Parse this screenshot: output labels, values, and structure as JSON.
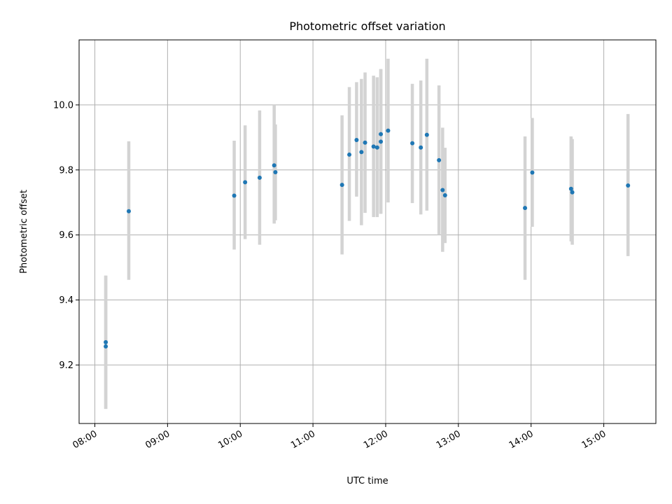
{
  "chart_data": {
    "type": "scatter",
    "title": "Photometric offset variation",
    "xlabel": "UTC time",
    "ylabel": "Photometric offset",
    "xlim": [
      "07:47",
      "15:43"
    ],
    "ylim": [
      9.02,
      10.2
    ],
    "grid": true,
    "x_ticks": [
      "08:00",
      "09:00",
      "10:00",
      "11:00",
      "12:00",
      "13:00",
      "14:00",
      "15:00"
    ],
    "y_ticks": [
      9.2,
      9.4,
      9.6,
      9.8,
      10.0
    ],
    "y_tick_labels": [
      "9.2",
      "9.4",
      "9.6",
      "9.8",
      "10.0"
    ],
    "colors": {
      "point": "#1f77b4",
      "errorbar": "#d3d3d3",
      "grid": "#b0b0b0"
    },
    "points": [
      {
        "x": "08:09",
        "y": 9.27,
        "lo": 9.065,
        "hi": 9.475
      },
      {
        "x": "08:09",
        "y": 9.257,
        "lo": 9.065,
        "hi": 9.475
      },
      {
        "x": "08:28",
        "y": 9.673,
        "lo": 9.462,
        "hi": 9.888
      },
      {
        "x": "09:55",
        "y": 9.721,
        "lo": 9.555,
        "hi": 9.89
      },
      {
        "x": "10:04",
        "y": 9.762,
        "lo": 9.587,
        "hi": 9.937
      },
      {
        "x": "10:16",
        "y": 9.776,
        "lo": 9.57,
        "hi": 9.983
      },
      {
        "x": "10:28",
        "y": 9.814,
        "lo": 9.635,
        "hi": 10.0
      },
      {
        "x": "10:29",
        "y": 9.793,
        "lo": 9.645,
        "hi": 9.94
      },
      {
        "x": "11:24",
        "y": 9.754,
        "lo": 9.54,
        "hi": 9.968
      },
      {
        "x": "11:30",
        "y": 9.847,
        "lo": 9.643,
        "hi": 10.055
      },
      {
        "x": "11:36",
        "y": 9.892,
        "lo": 9.718,
        "hi": 10.07
      },
      {
        "x": "11:40",
        "y": 9.855,
        "lo": 9.63,
        "hi": 10.08
      },
      {
        "x": "11:43",
        "y": 9.884,
        "lo": 9.668,
        "hi": 10.1
      },
      {
        "x": "11:50",
        "y": 9.872,
        "lo": 9.655,
        "hi": 10.09
      },
      {
        "x": "11:53",
        "y": 9.869,
        "lo": 9.655,
        "hi": 10.085
      },
      {
        "x": "11:56",
        "y": 9.91,
        "lo": 9.665,
        "hi": 10.11
      },
      {
        "x": "11:56",
        "y": 9.887,
        "lo": 9.665,
        "hi": 10.11
      },
      {
        "x": "12:02",
        "y": 9.921,
        "lo": 9.7,
        "hi": 10.142
      },
      {
        "x": "12:22",
        "y": 9.882,
        "lo": 9.698,
        "hi": 10.065
      },
      {
        "x": "12:29",
        "y": 9.869,
        "lo": 9.663,
        "hi": 10.075
      },
      {
        "x": "12:34",
        "y": 9.908,
        "lo": 9.675,
        "hi": 10.142
      },
      {
        "x": "12:44",
        "y": 9.83,
        "lo": 9.6,
        "hi": 10.06
      },
      {
        "x": "12:47",
        "y": 9.738,
        "lo": 9.548,
        "hi": 9.93
      },
      {
        "x": "12:49",
        "y": 9.722,
        "lo": 9.575,
        "hi": 9.868
      },
      {
        "x": "13:55",
        "y": 9.683,
        "lo": 9.462,
        "hi": 9.903
      },
      {
        "x": "14:01",
        "y": 9.792,
        "lo": 9.625,
        "hi": 9.96
      },
      {
        "x": "14:33",
        "y": 9.742,
        "lo": 9.58,
        "hi": 9.903
      },
      {
        "x": "14:34",
        "y": 9.731,
        "lo": 9.57,
        "hi": 9.895
      },
      {
        "x": "15:20",
        "y": 9.752,
        "lo": 9.535,
        "hi": 9.972
      }
    ]
  }
}
